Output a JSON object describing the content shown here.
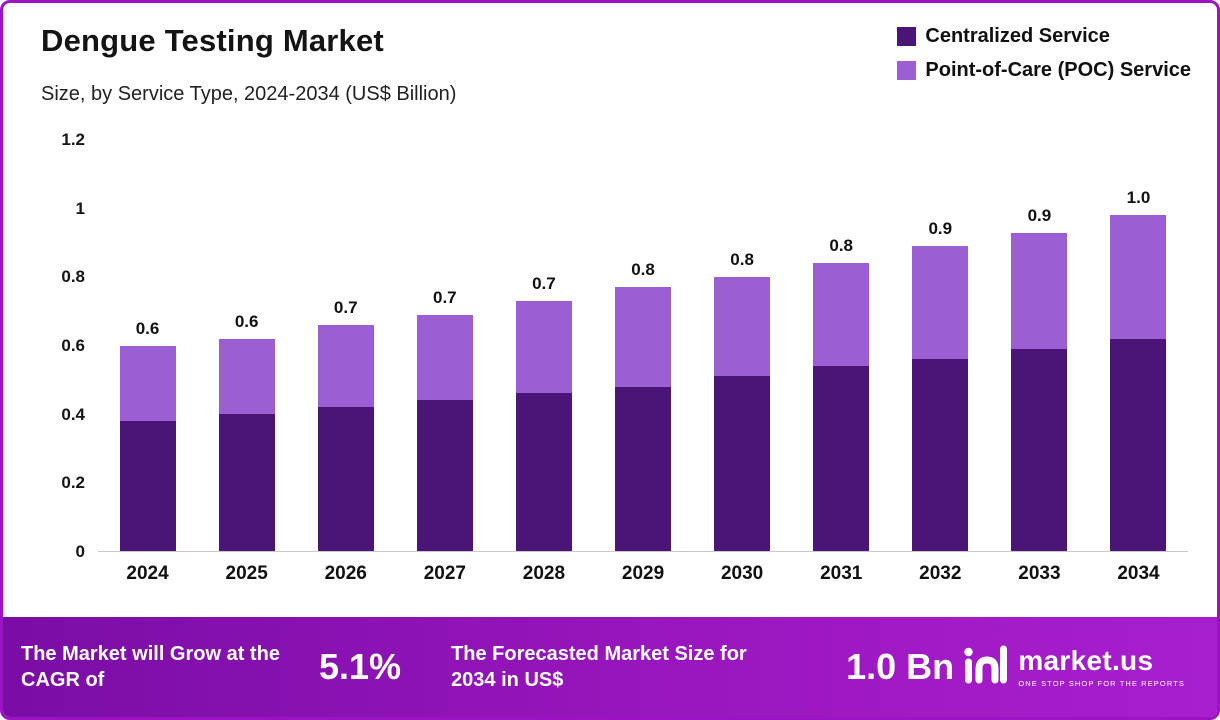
{
  "header": {
    "title": "Dengue Testing Market",
    "subtitle": "Size, by Service Type, 2024-2034 (US$ Billion)"
  },
  "legend": [
    {
      "label": "Centralized Service",
      "color": "#4a1577"
    },
    {
      "label": "Point-of-Care (POC) Service",
      "color": "#9c5ed3"
    }
  ],
  "chart_data": {
    "type": "bar",
    "stacked": true,
    "title": "Dengue Testing Market",
    "subtitle": "Size, by Service Type, 2024-2034 (US$ Billion)",
    "xlabel": "",
    "ylabel": "",
    "units": "US$ Billion",
    "categories": [
      "2024",
      "2025",
      "2026",
      "2027",
      "2028",
      "2029",
      "2030",
      "2031",
      "2032",
      "2033",
      "2034"
    ],
    "series": [
      {
        "name": "Centralized Service",
        "color": "#4a1577",
        "values": [
          0.38,
          0.4,
          0.42,
          0.44,
          0.46,
          0.48,
          0.51,
          0.54,
          0.56,
          0.59,
          0.62
        ]
      },
      {
        "name": "Point-of-Care (POC) Service",
        "color": "#9c5ed3",
        "values": [
          0.22,
          0.22,
          0.24,
          0.25,
          0.27,
          0.29,
          0.29,
          0.3,
          0.33,
          0.34,
          0.36
        ]
      }
    ],
    "total_labels": [
      "0.6",
      "0.6",
      "0.7",
      "0.7",
      "0.7",
      "0.8",
      "0.8",
      "0.8",
      "0.9",
      "0.9",
      "1.0"
    ],
    "ylim": [
      0,
      1.2
    ],
    "yticks": [
      0,
      0.2,
      0.4,
      0.6,
      0.8,
      1,
      1.2
    ],
    "ytick_labels": [
      "0",
      "0.2",
      "0.4",
      "0.6",
      "0.8",
      "1",
      "1.2"
    ],
    "grid": false,
    "legend_position": "top-right"
  },
  "footer": {
    "cagr_text": "The Market will Grow at the CAGR of",
    "cagr_value": "5.1%",
    "forecast_text": "The Forecasted Market Size for 2034 in US$",
    "forecast_value": "1.0 Bn",
    "brand_name": "market.us",
    "brand_tagline": "ONE STOP SHOP FOR THE REPORTS"
  },
  "colors": {
    "frame_border": "#9b13c2",
    "footer_gradient_start": "#7a0da5",
    "footer_gradient_end": "#a81fce",
    "centralized": "#4a1577",
    "poc": "#9c5ed3"
  }
}
